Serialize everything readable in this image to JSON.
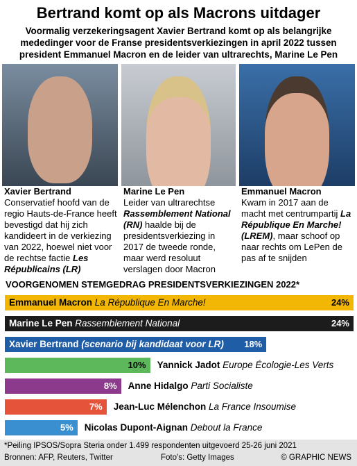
{
  "header": {
    "title": "Bertrand komt op als Macrons uitdager",
    "subtitle": "Voormalig verzekeringsagent Xavier Bertrand komt op als belangrijke mededinger voor de Franse presidentsverkiezingen in april 2022 tussen president Emmanuel Macron en de leider van ultrarechts, Marine Le Pen"
  },
  "profiles": [
    {
      "name": "Xavier Bertrand",
      "description": [
        {
          "text": "Conservatief hoofd van de regio Hauts-de-France heeft bevestigd dat hij zich kandideert in de verkiezing van 2022, hoewel niet voor de rechtse factie "
        },
        {
          "text": "Les Républicains (LR)",
          "emphasis": true
        }
      ]
    },
    {
      "name": "Marine Le Pen",
      "description": [
        {
          "text": "Leider van ultrarechtse "
        },
        {
          "text": "Rassemblement National (RN)",
          "emphasis": true
        },
        {
          "text": " haalde bij de presidentsverkiezing in 2017 de tweede ronde, maar werd resoluut verslagen door Macron"
        }
      ]
    },
    {
      "name": "Emmanuel Macron",
      "description": [
        {
          "text": "Kwam in 2017 aan de macht met centrumpartij "
        },
        {
          "text": "La République En Marche! (LREM)",
          "emphasis": true
        },
        {
          "text": ", maar schoof op naar rechts om LePen de pas af te snijden"
        }
      ]
    }
  ],
  "chart_data": {
    "type": "bar",
    "title": "VOORGENOMEN STEMGEDRAG PRESIDENTSVERKIEZINGEN 2022*",
    "categories": [
      "Emmanuel Macron",
      "Marine Le Pen",
      "Xavier Bertrand",
      "Yannick Jadot",
      "Anne Hidalgo",
      "Jean-Luc Mélenchon",
      "Nicolas Dupont-Aignan"
    ],
    "parties": [
      "La République En Marche!",
      "Rassemblement National",
      "(scenario bij kandidaat voor LR)",
      "Europe Écologie-Les Verts",
      "Parti Socialiste",
      "La France Insoumise",
      "Debout la France"
    ],
    "values": [
      24,
      24,
      18,
      10,
      8,
      7,
      5
    ],
    "value_labels": [
      "24%",
      "24%",
      "18%",
      "10%",
      "8%",
      "7%",
      "5%"
    ],
    "colors": [
      "#f2b705",
      "#1c1c1c",
      "#1f5da6",
      "#5cb85a",
      "#8c3a8c",
      "#e5533b",
      "#3a8fd0"
    ]
  },
  "footer": {
    "note": "*Peiling IPSOS/Sopra Steria onder 1.499 respondenten uitgevoerd 25-26 juni 2021",
    "sources": "Bronnen: AFP, Reuters, Twitter",
    "photos": "Foto's: Getty Images",
    "copyright": "© GRAPHIC NEWS"
  }
}
